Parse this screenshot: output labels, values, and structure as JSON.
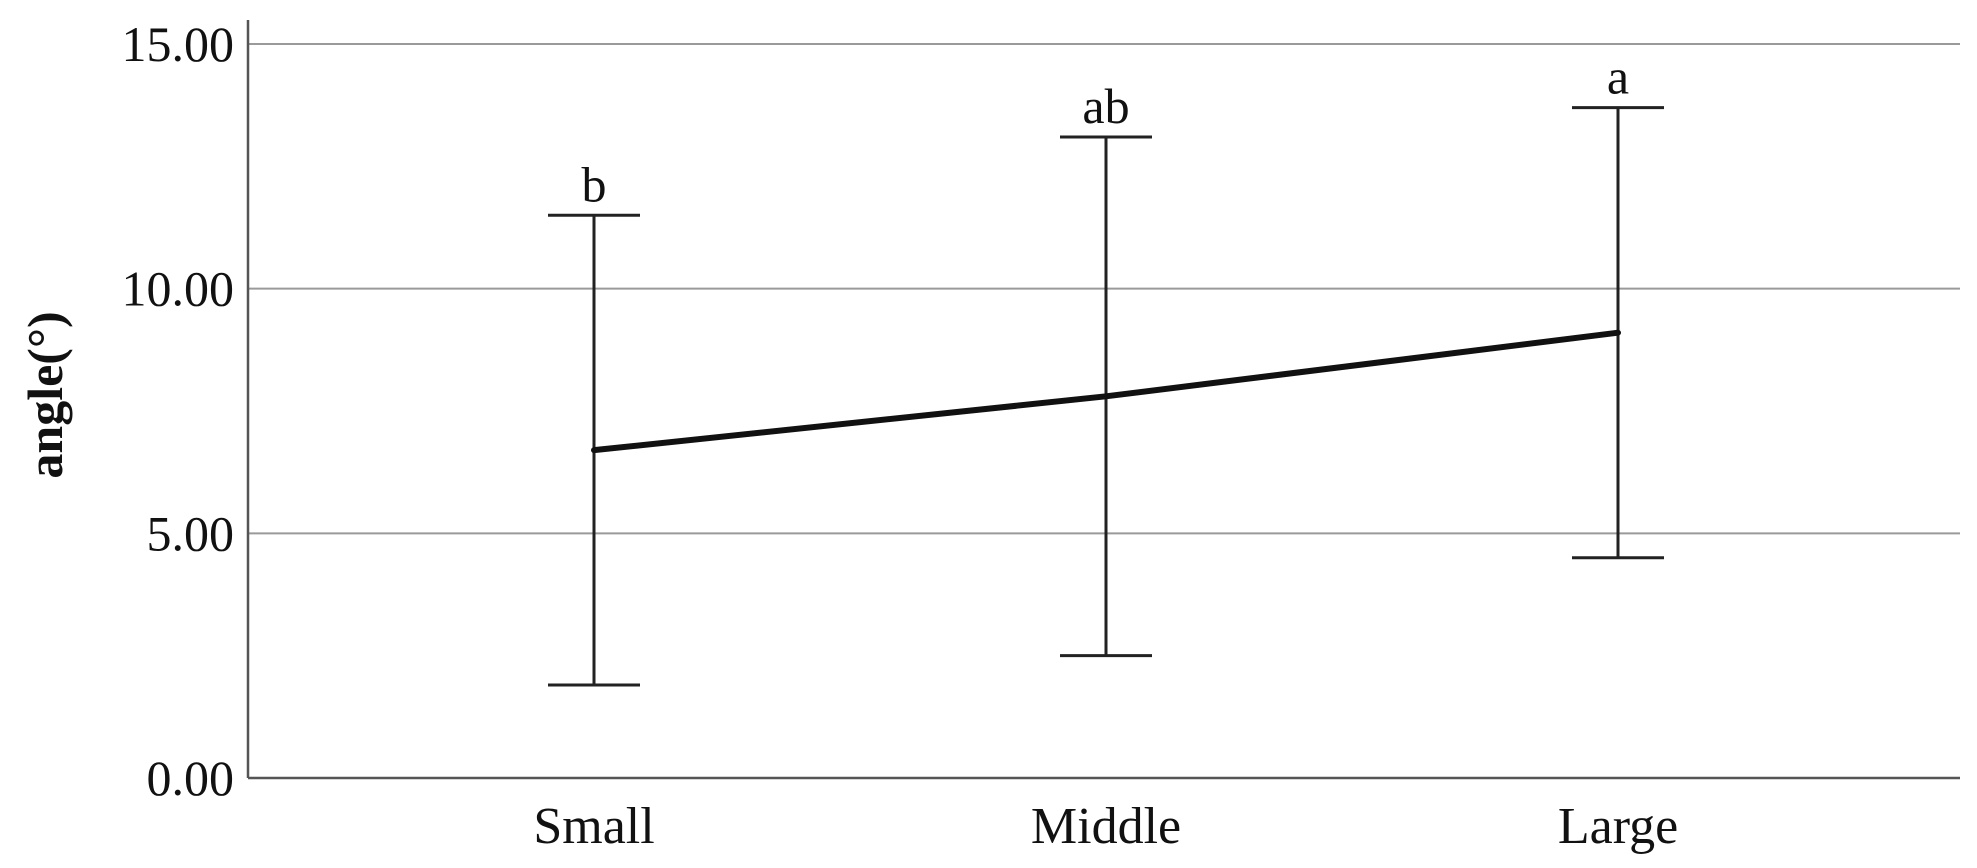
{
  "chart_data": {
    "type": "line",
    "title": "",
    "xlabel": "",
    "ylabel": "angle(°)",
    "ylim": [
      0,
      15
    ],
    "yticks": [
      "0.00",
      "5.00",
      "10.00",
      "15.00"
    ],
    "grid": true,
    "categories": [
      "Small",
      "Middle",
      "Large"
    ],
    "series": [
      {
        "values": [
          6.7,
          7.8,
          9.1
        ],
        "error_upper": [
          11.5,
          13.1,
          13.7
        ],
        "error_lower": [
          1.9,
          2.5,
          4.5
        ]
      }
    ],
    "annotations": [
      "b",
      "ab",
      "a"
    ]
  },
  "colors": {
    "line": "#111111",
    "grid": "#9a9a9a"
  }
}
